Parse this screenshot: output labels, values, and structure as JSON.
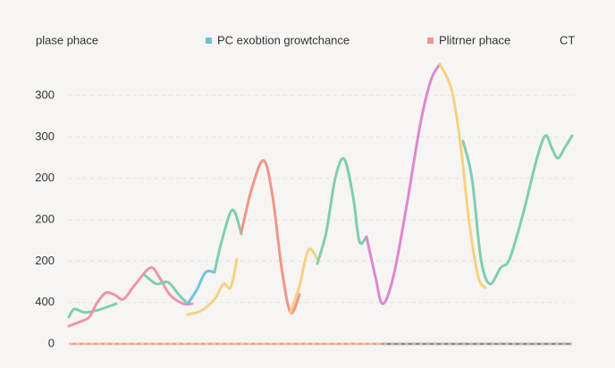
{
  "chart_data": {
    "type": "line",
    "title": "plase phace",
    "corner_label": "CT",
    "legend": [
      {
        "label": "PC exobtion growtchance",
        "color": "#6cc4cf"
      },
      {
        "label": "Plitrner phace",
        "color": "#f2958a"
      }
    ],
    "xlim": [
      0,
      563
    ],
    "ylim": [
      0,
      6.8
    ],
    "yticks": [
      {
        "value": 0,
        "label": "0"
      },
      {
        "value": 1,
        "label": "400"
      },
      {
        "value": 2,
        "label": "200"
      },
      {
        "value": 3,
        "label": "200"
      },
      {
        "value": 4,
        "label": "200"
      },
      {
        "value": 5,
        "label": "300"
      },
      {
        "value": 6,
        "label": "300"
      }
    ],
    "grid": true,
    "series": [
      {
        "color": "#7fcfae",
        "x": [
          0,
          6,
          18,
          33,
          53
        ],
        "values": [
          0.65,
          0.84,
          0.76,
          0.82,
          0.97
        ]
      },
      {
        "color": "#ef93b0",
        "x": [
          0,
          13,
          23,
          31,
          41,
          51,
          61,
          73,
          91,
          101,
          113,
          128,
          138
        ],
        "values": [
          0.43,
          0.54,
          0.65,
          0.97,
          1.23,
          1.19,
          1.08,
          1.4,
          1.84,
          1.62,
          1.19,
          0.97,
          0.97
        ]
      },
      {
        "color": "#7fcfae",
        "x": [
          85,
          98,
          111,
          123,
          133
        ],
        "values": [
          1.66,
          1.45,
          1.49,
          1.19,
          0.97
        ]
      },
      {
        "color": "#72c3df",
        "x": [
          133,
          143,
          153,
          163
        ],
        "values": [
          0.97,
          1.3,
          1.73,
          1.73
        ]
      },
      {
        "color": "#f6d27f",
        "x": [
          133,
          148,
          163,
          173,
          181,
          188
        ],
        "values": [
          0.71,
          0.8,
          1.08,
          1.45,
          1.36,
          2.05
        ]
      },
      {
        "color": "#7fcfae",
        "x": [
          163,
          171,
          183,
          193
        ],
        "values": [
          1.73,
          2.48,
          3.24,
          2.66
        ]
      },
      {
        "color": "#f2958a",
        "x": [
          193,
          205,
          218,
          228,
          238,
          248,
          258
        ],
        "values": [
          2.7,
          3.78,
          4.43,
          3.56,
          1.84,
          0.76,
          1.19
        ]
      },
      {
        "color": "#f6d27f",
        "x": [
          248,
          258,
          268,
          278
        ],
        "values": [
          0.76,
          1.4,
          2.27,
          2.05
        ]
      },
      {
        "color": "#7fcfae",
        "x": [
          278,
          288,
          298,
          308,
          318,
          325,
          333
        ],
        "values": [
          1.94,
          2.7,
          4.0,
          4.47,
          3.56,
          2.48,
          2.59
        ]
      },
      {
        "color": "#df86d0",
        "x": [
          333,
          343,
          351,
          363,
          378,
          393,
          405,
          415
        ],
        "values": [
          2.59,
          1.62,
          0.97,
          1.62,
          3.35,
          5.29,
          6.37,
          6.76
        ]
      },
      {
        "color": "#f6d27f",
        "x": [
          415,
          428,
          438,
          448,
          458,
          466
        ],
        "values": [
          6.76,
          6.16,
          4.86,
          2.92,
          1.62,
          1.36
        ]
      },
      {
        "color": "#7fcfae",
        "x": [
          441,
          451,
          461,
          471,
          483,
          493,
          508,
          523,
          533,
          540,
          547,
          555,
          563
        ],
        "values": [
          4.9,
          4.0,
          2.05,
          1.45,
          1.84,
          2.05,
          3.13,
          4.43,
          5.03,
          4.75,
          4.49,
          4.75,
          5.03
        ]
      }
    ]
  }
}
